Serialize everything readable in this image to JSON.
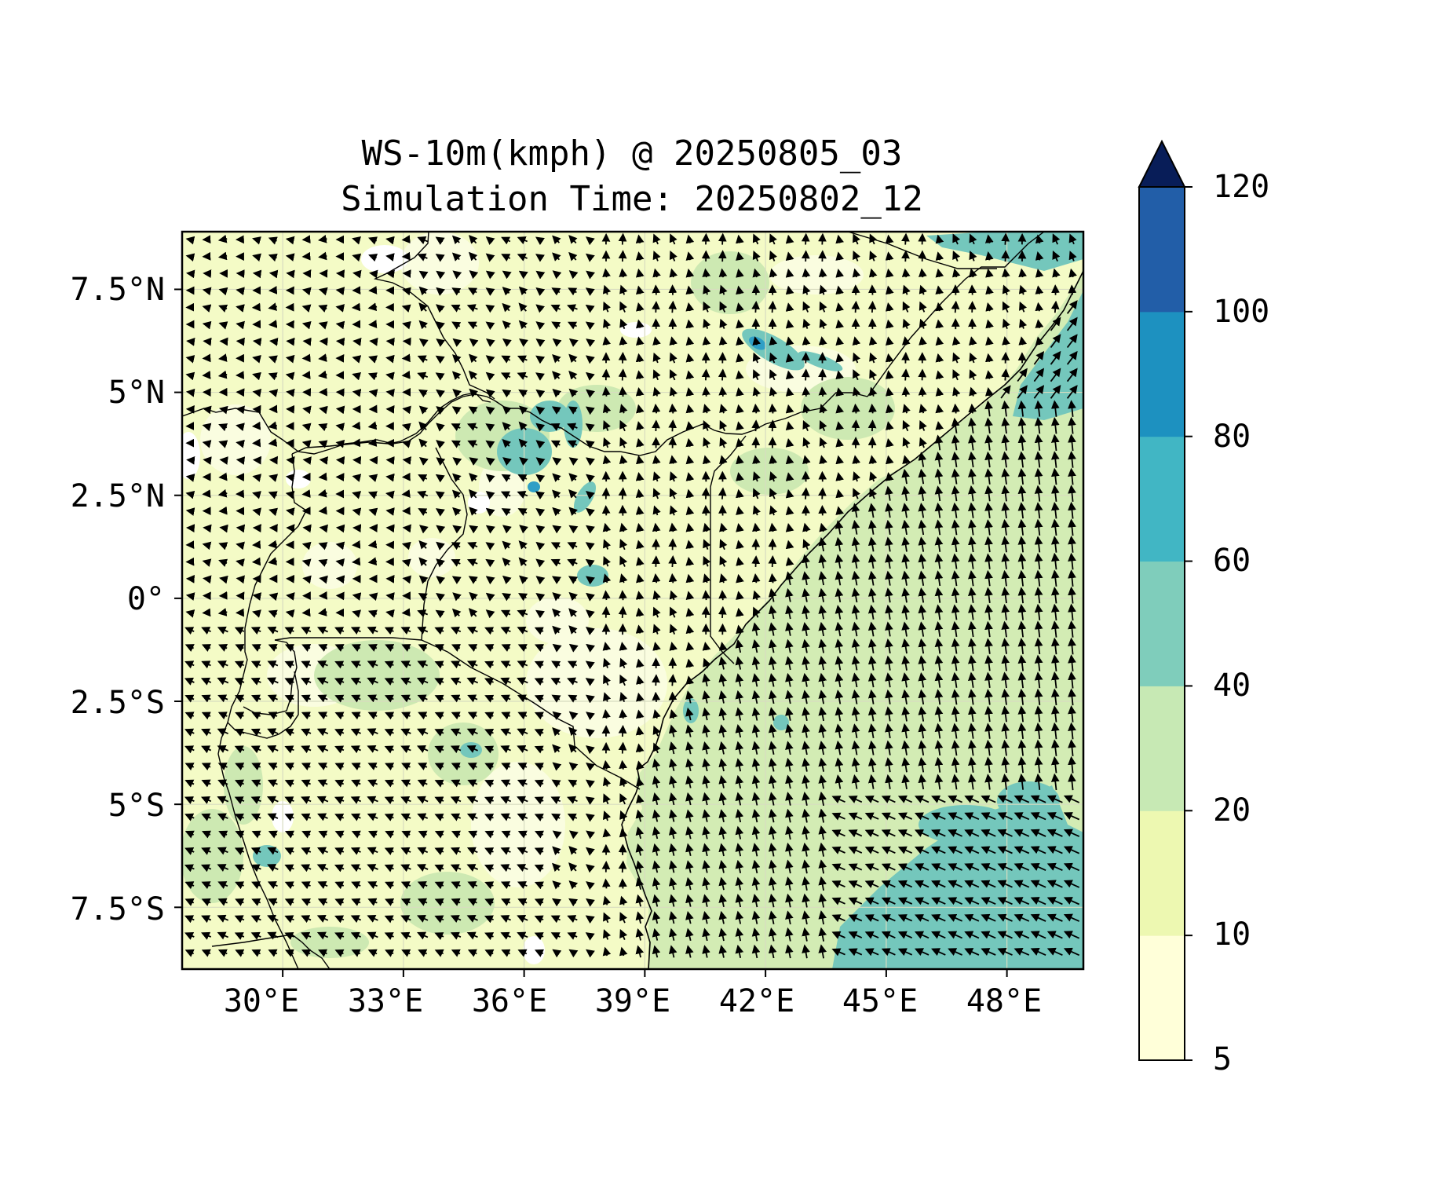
{
  "figure": {
    "title_line1": "WS-10m(kmph) @ 20250805_03",
    "title_line2": "Simulation Time: 20250802_12"
  },
  "map": {
    "lon_range": [
      27.5,
      49.9
    ],
    "lat_range": [
      -9.0,
      8.9
    ],
    "x_ticks": [
      {
        "value": 30,
        "label": "30°E"
      },
      {
        "value": 33,
        "label": "33°E"
      },
      {
        "value": 36,
        "label": "36°E"
      },
      {
        "value": 39,
        "label": "39°E"
      },
      {
        "value": 42,
        "label": "42°E"
      },
      {
        "value": 45,
        "label": "45°E"
      },
      {
        "value": 48,
        "label": "48°E"
      }
    ],
    "y_ticks": [
      {
        "value": 7.5,
        "label": "7.5°N"
      },
      {
        "value": 5,
        "label": "5°N"
      },
      {
        "value": 2.5,
        "label": "2.5°N"
      },
      {
        "value": 0,
        "label": "0°"
      },
      {
        "value": -2.5,
        "label": "2.5°S"
      },
      {
        "value": -5,
        "label": "5°S"
      },
      {
        "value": -7.5,
        "label": "7.5°S"
      }
    ],
    "gridlines": true,
    "field_colors": {
      "land_base": "#f4fbc6",
      "ocean_base": "#d3ecb4",
      "light_patch": "#fafde0",
      "white_patch": "#ffffff",
      "medium_patch": "#cde9b2",
      "strong_patch": "#74c7bc",
      "peak_patch": "#2f9fc6"
    }
  },
  "colorbar": {
    "levels": [
      5,
      10,
      20,
      40,
      60,
      80,
      100,
      120
    ],
    "labels": [
      "5",
      "10",
      "20",
      "40",
      "60",
      "80",
      "100",
      "120"
    ],
    "colors": [
      "#ffffd9",
      "#edf8b1",
      "#c7e9b4",
      "#7fcdbb",
      "#41b6c4",
      "#1d91c0",
      "#225ea8",
      "#0c2c84"
    ],
    "extend_color": "#081d58",
    "extend": "max"
  }
}
